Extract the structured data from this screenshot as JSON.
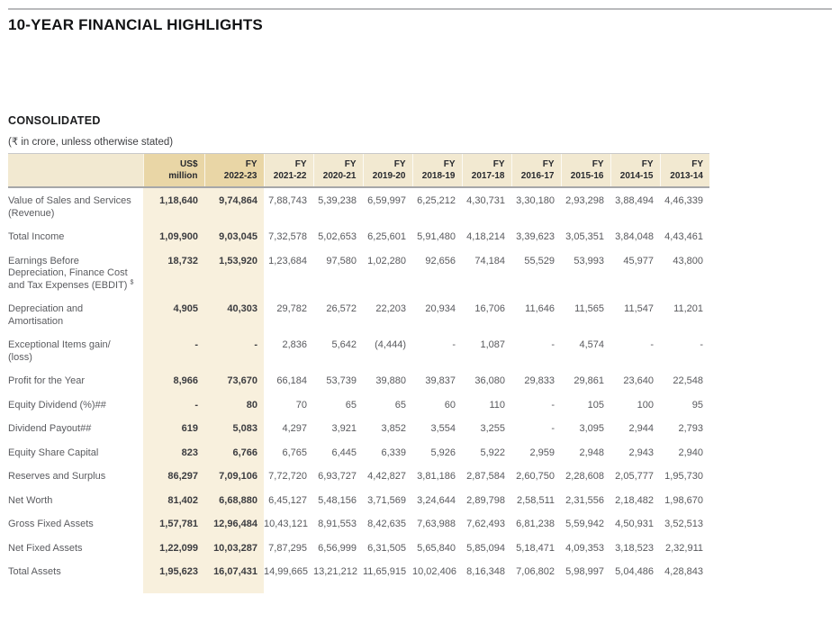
{
  "page": {
    "title": "10-YEAR FINANCIAL HIGHLIGHTS",
    "section": "CONSOLIDATED",
    "unit_note": "(₹ in crore, unless otherwise stated)"
  },
  "table": {
    "columns": [
      {
        "line1": "US$",
        "line2": "million",
        "highlight": true
      },
      {
        "line1": "FY",
        "line2": "2022-23",
        "highlight": true
      },
      {
        "line1": "FY",
        "line2": "2021-22",
        "highlight": false
      },
      {
        "line1": "FY",
        "line2": "2020-21",
        "highlight": false
      },
      {
        "line1": "FY",
        "line2": "2019-20",
        "highlight": false
      },
      {
        "line1": "FY",
        "line2": "2018-19",
        "highlight": false
      },
      {
        "line1": "FY",
        "line2": "2017-18",
        "highlight": false
      },
      {
        "line1": "FY",
        "line2": "2016-17",
        "highlight": false
      },
      {
        "line1": "FY",
        "line2": "2015-16",
        "highlight": false
      },
      {
        "line1": "FY",
        "line2": "2014-15",
        "highlight": false
      },
      {
        "line1": "FY",
        "line2": "2013-14",
        "highlight": false
      }
    ],
    "rows": [
      {
        "label": "Value of Sales and Services (Revenue)",
        "sup": "",
        "values": [
          "1,18,640",
          "9,74,864",
          "7,88,743",
          "5,39,238",
          "6,59,997",
          "6,25,212",
          "4,30,731",
          "3,30,180",
          "2,93,298",
          "3,88,494",
          "4,46,339"
        ]
      },
      {
        "label": "Total Income",
        "sup": "",
        "values": [
          "1,09,900",
          "9,03,045",
          "7,32,578",
          "5,02,653",
          "6,25,601",
          "5,91,480",
          "4,18,214",
          "3,39,623",
          "3,05,351",
          "3,84,048",
          "4,43,461"
        ]
      },
      {
        "label": "Earnings Before Depreciation, Finance Cost and Tax Expenses (EBDIT) ",
        "sup": "$",
        "values": [
          "18,732",
          "1,53,920",
          "1,23,684",
          "97,580",
          "1,02,280",
          "92,656",
          "74,184",
          "55,529",
          "53,993",
          "45,977",
          "43,800"
        ]
      },
      {
        "label": "Depreciation and Amortisation",
        "sup": "",
        "values": [
          "4,905",
          "40,303",
          "29,782",
          "26,572",
          "22,203",
          "20,934",
          "16,706",
          "11,646",
          "11,565",
          "11,547",
          "11,201"
        ]
      },
      {
        "label": "Exceptional Items gain/ (loss)",
        "sup": "",
        "values": [
          "-",
          "-",
          "2,836",
          "5,642",
          "(4,444)",
          "-",
          "1,087",
          "-",
          "4,574",
          "-",
          "-"
        ]
      },
      {
        "label": "Profit for the Year",
        "sup": "",
        "values": [
          "8,966",
          "73,670",
          "66,184",
          "53,739",
          "39,880",
          "39,837",
          "36,080",
          "29,833",
          "29,861",
          "23,640",
          "22,548"
        ]
      },
      {
        "label": "Equity Dividend (%)##",
        "sup": "",
        "values": [
          "-",
          "80",
          "70",
          "65",
          "65",
          "60",
          "110",
          "-",
          "105",
          "100",
          "95"
        ]
      },
      {
        "label": "Dividend Payout##",
        "sup": "",
        "values": [
          "619",
          "5,083",
          "4,297",
          "3,921",
          "3,852",
          "3,554",
          "3,255",
          "-",
          "3,095",
          "2,944",
          "2,793"
        ]
      },
      {
        "label": "Equity Share Capital",
        "sup": "",
        "values": [
          "823",
          "6,766",
          "6,765",
          "6,445",
          "6,339",
          "5,926",
          "5,922",
          "2,959",
          "2,948",
          "2,943",
          "2,940"
        ]
      },
      {
        "label": "Reserves and Surplus",
        "sup": "",
        "values": [
          "86,297",
          "7,09,106",
          "7,72,720",
          "6,93,727",
          "4,42,827",
          "3,81,186",
          "2,87,584",
          "2,60,750",
          "2,28,608",
          "2,05,777",
          "1,95,730"
        ]
      },
      {
        "label": "Net Worth",
        "sup": "",
        "values": [
          "81,402",
          "6,68,880",
          "6,45,127",
          "5,48,156",
          "3,71,569",
          "3,24,644",
          "2,89,798",
          "2,58,511",
          "2,31,556",
          "2,18,482",
          "1,98,670"
        ]
      },
      {
        "label": "Gross Fixed Assets",
        "sup": "",
        "values": [
          "1,57,781",
          "12,96,484",
          "10,43,121",
          "8,91,553",
          "8,42,635",
          "7,63,988",
          "7,62,493",
          "6,81,238",
          "5,59,942",
          "4,50,931",
          "3,52,513"
        ]
      },
      {
        "label": "Net Fixed Assets",
        "sup": "",
        "values": [
          "1,22,099",
          "10,03,287",
          "7,87,295",
          "6,56,999",
          "6,31,505",
          "5,65,840",
          "5,85,094",
          "5,18,471",
          "4,09,353",
          "3,18,523",
          "2,32,911"
        ]
      },
      {
        "label": "Total Assets",
        "sup": "",
        "values": [
          "1,95,623",
          "16,07,431",
          "14,99,665",
          "13,21,212",
          "11,65,915",
          "10,02,406",
          "8,16,348",
          "7,06,802",
          "5,98,997",
          "5,04,486",
          "4,28,843"
        ]
      }
    ]
  }
}
